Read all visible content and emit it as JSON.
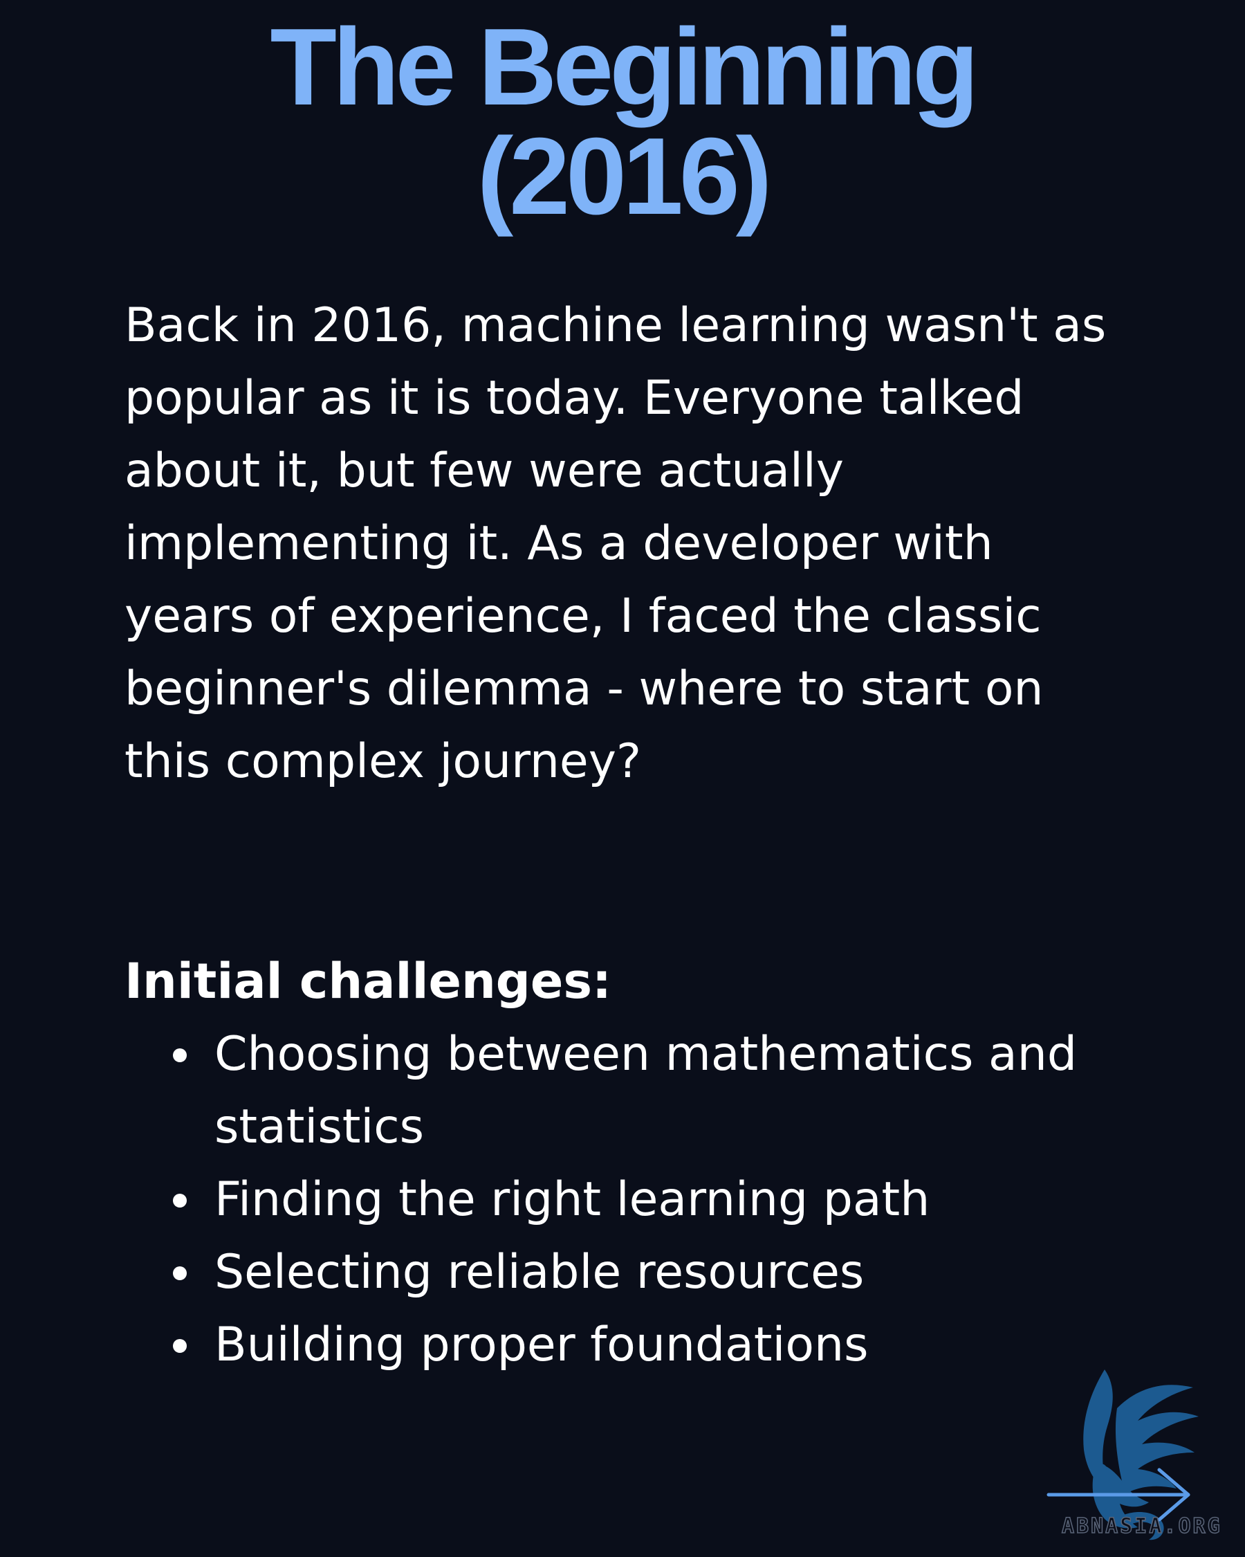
{
  "page": {
    "title_line1": "The Beginning",
    "title_line2": "(2016)",
    "intro_text": "Back in 2016, machine learning wasn't as popular as it is today. Everyone talked about it, but few were actually implementing it. As a developer with years of experience, I faced the classic beginner's dilemma - where to start on this complex journey?",
    "challenges_heading": "Initial challenges:",
    "challenges": [
      "Choosing between mathematics and statistics",
      "Finding the right learning path",
      "Selecting reliable resources",
      "Building proper foundations"
    ]
  },
  "branding": {
    "logo_text": "ABNASIA.ORG",
    "logo_icon": "phoenix-logo-icon",
    "next_icon": "arrow-right-icon"
  },
  "colors": {
    "background": "#0a0e1a",
    "title": "#7fb3f8",
    "text": "#ffffff",
    "logo": "#1c5a90",
    "arrow": "#5b9be8"
  }
}
